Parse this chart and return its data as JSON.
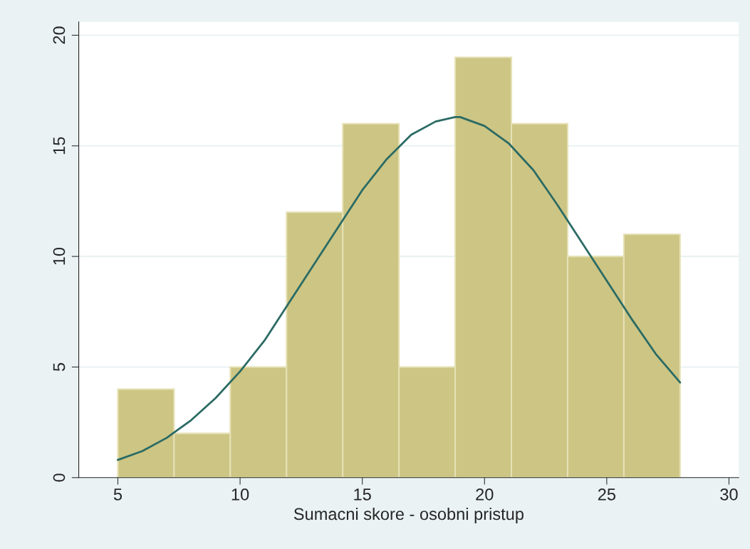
{
  "chart_data": {
    "type": "histogram",
    "xlabel": "Sumacni skore - osobni pristup",
    "series": [
      {
        "bins": [
          5,
          7.3,
          9.6,
          11.9,
          14.2,
          16.5,
          18.8,
          21.1,
          23.4,
          25.7,
          28
        ],
        "values": [
          4,
          2,
          5,
          12,
          16,
          5,
          19,
          16,
          10,
          11
        ],
        "color": "#cdc584"
      },
      {
        "type": "line",
        "x": [
          5,
          6,
          7,
          8,
          9,
          10,
          11,
          12,
          13,
          14,
          15,
          16,
          17,
          18,
          18.8,
          19,
          20,
          21,
          22,
          23,
          24,
          25,
          26,
          27,
          28
        ],
        "values": [
          0.8,
          1.2,
          1.8,
          2.6,
          3.6,
          4.8,
          6.2,
          7.9,
          9.6,
          11.3,
          13.0,
          14.4,
          15.5,
          16.1,
          16.3,
          16.3,
          15.9,
          15.1,
          13.9,
          12.3,
          10.6,
          8.9,
          7.2,
          5.6,
          4.3
        ],
        "color": "#2b6b64"
      }
    ],
    "xlim": [
      3.4,
      30.4
    ],
    "ylim": [
      0,
      20.6
    ],
    "xticks": [
      5,
      10,
      15,
      20,
      25,
      30
    ],
    "yticks": [
      0,
      5,
      10,
      15,
      20
    ],
    "grid": "y"
  }
}
